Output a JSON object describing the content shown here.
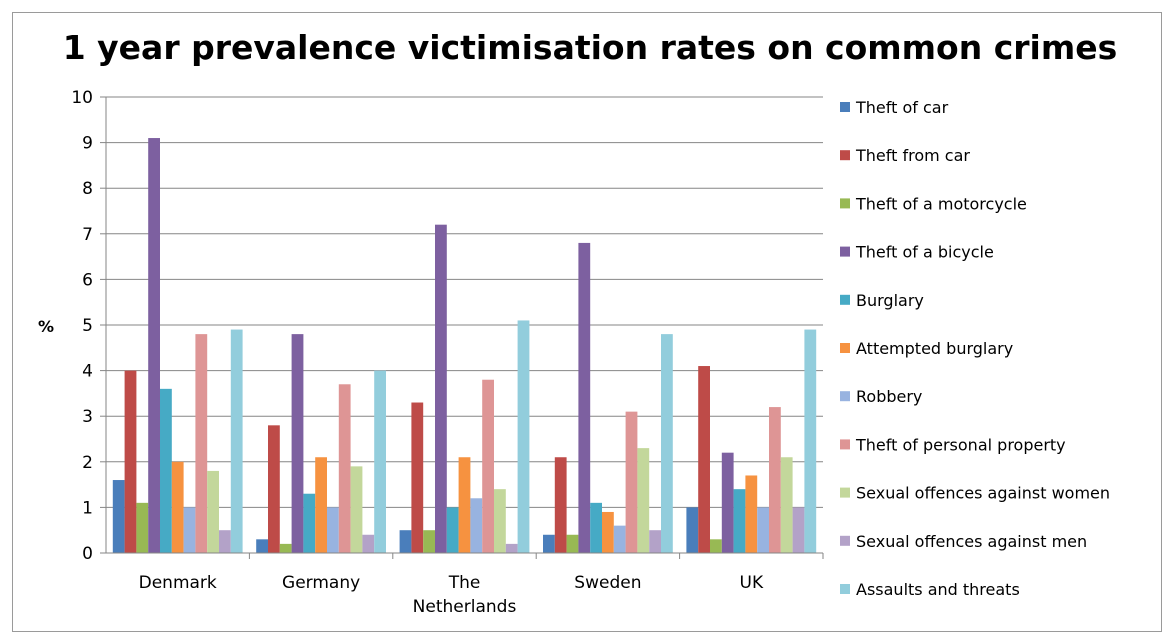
{
  "chart_data": {
    "type": "bar",
    "title": "1 year prevalence victimisation rates on common crimes",
    "ylabel": "%",
    "xlabel": "",
    "ylim": [
      0,
      10
    ],
    "yticks": [
      "0",
      "1",
      "2",
      "3",
      "4",
      "5",
      "6",
      "7",
      "8",
      "9",
      "10"
    ],
    "grid": true,
    "legend_position": "right",
    "categories": [
      [
        "Denmark"
      ],
      [
        "Germany"
      ],
      [
        "The",
        "Netherlands"
      ],
      [
        "Sweden"
      ],
      [
        "UK"
      ]
    ],
    "series": [
      {
        "name": "Theft of car",
        "color": "#4A7EBB",
        "values": [
          1.6,
          0.3,
          0.5,
          0.4,
          1.0
        ]
      },
      {
        "name": "Theft from car",
        "color": "#BE4B48",
        "values": [
          4.0,
          2.8,
          3.3,
          2.1,
          4.1
        ]
      },
      {
        "name": "Theft of a motorcycle",
        "color": "#98B954",
        "values": [
          1.1,
          0.2,
          0.5,
          0.4,
          0.3
        ]
      },
      {
        "name": "Theft of a bicycle",
        "color": "#7D60A0",
        "values": [
          9.1,
          4.8,
          7.2,
          6.8,
          2.2
        ]
      },
      {
        "name": "Burglary",
        "color": "#46AAC5",
        "values": [
          3.6,
          1.3,
          1.0,
          1.1,
          1.4
        ]
      },
      {
        "name": "Attempted burglary",
        "color": "#F69240",
        "values": [
          2.0,
          2.1,
          2.1,
          0.9,
          1.7
        ]
      },
      {
        "name": "Robbery",
        "color": "#98B3E0",
        "values": [
          1.0,
          1.0,
          1.2,
          0.6,
          1.0
        ]
      },
      {
        "name": "Theft of personal property",
        "color": "#DE9595",
        "values": [
          4.8,
          3.7,
          3.8,
          3.1,
          3.2
        ]
      },
      {
        "name": "Sexual offences against women",
        "color": "#C3D79B",
        "values": [
          1.8,
          1.9,
          1.4,
          2.3,
          2.1
        ]
      },
      {
        "name": "Sexual offences against men",
        "color": "#B3A2C8",
        "values": [
          0.5,
          0.4,
          0.2,
          0.5,
          1.0
        ]
      },
      {
        "name": "Assaults and threats",
        "color": "#92CDDC",
        "values": [
          4.9,
          4.0,
          5.1,
          4.8,
          4.9
        ]
      }
    ]
  }
}
